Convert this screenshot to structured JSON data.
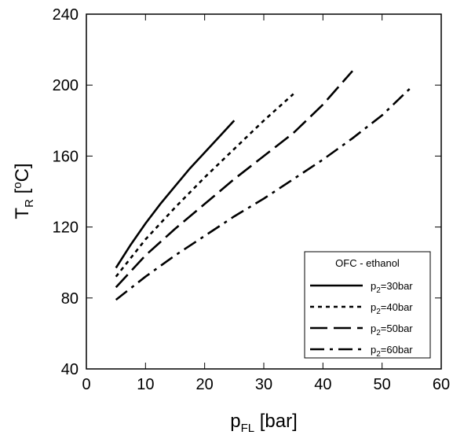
{
  "chart_data": {
    "type": "line",
    "title": "",
    "xlabel": {
      "main": "p",
      "sub": "FL",
      "rest": " [bar]"
    },
    "ylabel": {
      "main": "T",
      "sub": "R",
      "rest": " [",
      "sup": "o",
      "unit": "C]"
    },
    "xlim": [
      0,
      60
    ],
    "ylim": [
      40,
      240
    ],
    "xticks": [
      "0",
      "10",
      "20",
      "30",
      "40",
      "50",
      "60"
    ],
    "yticks": [
      "40",
      "80",
      "120",
      "160",
      "200",
      "240"
    ],
    "grid": false,
    "legend": {
      "title": "OFC - ethanol",
      "placement": "bottom-right"
    },
    "series": [
      {
        "label_main": "p",
        "label_sub": "2",
        "label_rest": "=30bar",
        "style": "solid",
        "x": [
          5,
          7.5,
          10,
          12.5,
          15,
          17.5,
          20,
          22.5,
          25
        ],
        "y": [
          97,
          110,
          122,
          133,
          143,
          153,
          162,
          171,
          180
        ]
      },
      {
        "label_main": "p",
        "label_sub": "2",
        "label_rest": "=40bar",
        "style": "dotted",
        "x": [
          5,
          10,
          15,
          20,
          25,
          30,
          35
        ],
        "y": [
          92,
          113,
          131,
          148,
          164,
          180,
          195
        ]
      },
      {
        "label_main": "p",
        "label_sub": "2",
        "label_rest": "=50bar",
        "style": "dashed",
        "x": [
          5,
          10,
          15,
          20,
          25,
          30,
          35,
          40,
          45
        ],
        "y": [
          86,
          104,
          119,
          133,
          147,
          160,
          173,
          189,
          208
        ]
      },
      {
        "label_main": "p",
        "label_sub": "2",
        "label_rest": "=60bar",
        "style": "dashdot",
        "x": [
          5,
          10,
          15,
          20,
          25,
          30,
          35,
          40,
          45,
          50,
          55
        ],
        "y": [
          79,
          92,
          104,
          115,
          126,
          136,
          147,
          158,
          170,
          183,
          199
        ]
      }
    ]
  }
}
